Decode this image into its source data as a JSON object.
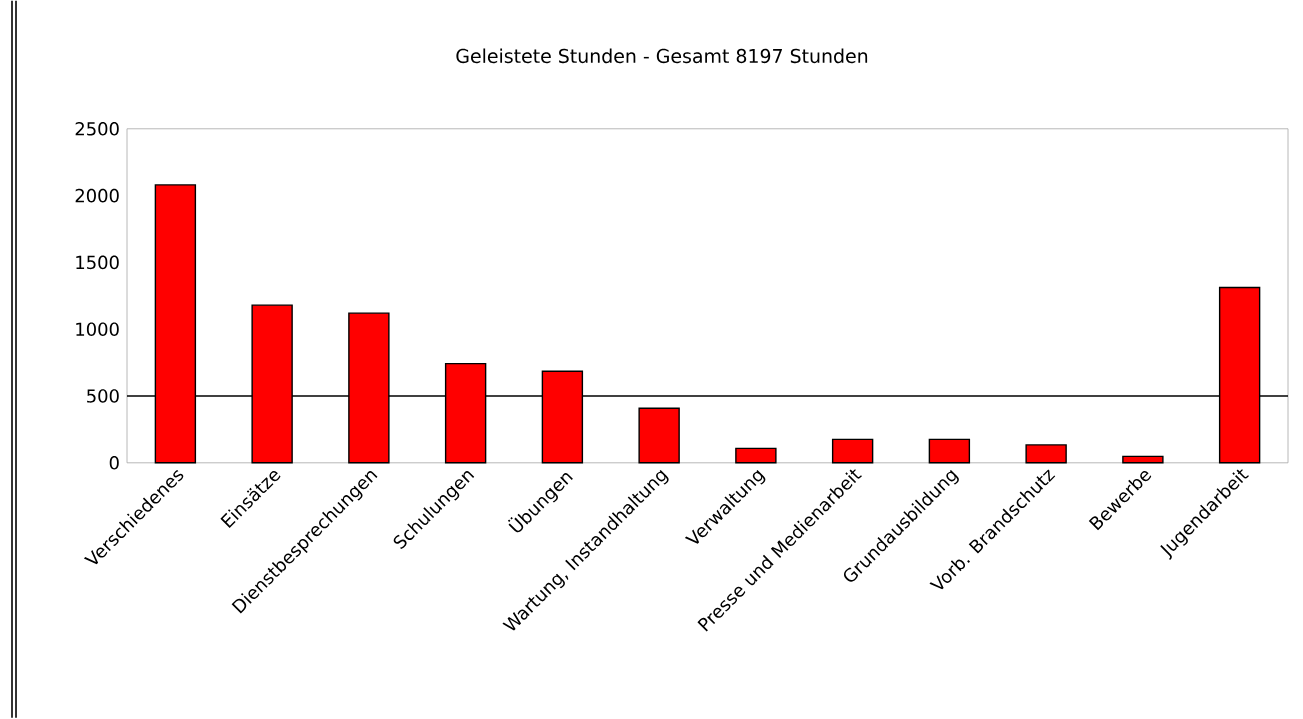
{
  "chart_data": {
    "type": "bar",
    "title": "Geleistete Stunden - Gesamt 8197 Stunden",
    "categories": [
      "Verschiedenes",
      "Einsätze",
      "Dienstbesprechungen",
      "Schulungen",
      "Übungen",
      "Wartung, Instandhaltung",
      "Verwaltung",
      "Presse und Medienarbeit",
      "Grundausbildung",
      "Vorb. Brandschutz",
      "Bewerbe",
      "Jugendarbeit"
    ],
    "values": [
      2080,
      1180,
      1120,
      742,
      685,
      408,
      108,
      175,
      175,
      134,
      48,
      1312
    ],
    "color": "#ff0000",
    "ylim": [
      0,
      2500
    ],
    "yticks": [
      0,
      500,
      1000,
      1500,
      2000,
      2500
    ],
    "ref_lines": [
      {
        "axis": "y",
        "value": 500,
        "color": "#000000"
      }
    ]
  }
}
